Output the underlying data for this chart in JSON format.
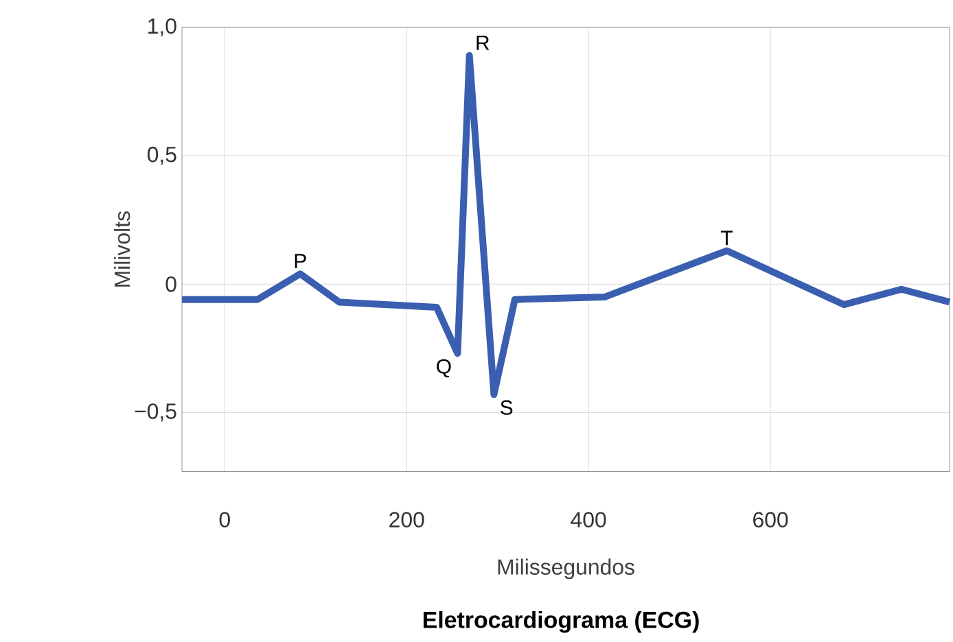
{
  "chart_data": {
    "type": "line",
    "title": "Eletrocardiograma (ECG)",
    "xlabel": "Milissegundos",
    "ylabel": "Milivolts",
    "x": [
      -47,
      36,
      83,
      126,
      233,
      256,
      269,
      296,
      319,
      418,
      552,
      681,
      744,
      797
    ],
    "values": [
      -0.06,
      -0.06,
      0.04,
      -0.07,
      -0.09,
      -0.27,
      0.89,
      -0.43,
      -0.06,
      -0.05,
      0.13,
      -0.08,
      -0.02,
      -0.07
    ],
    "color": "#3a5fb0",
    "marker": "none",
    "line_style": "solid",
    "grid": true,
    "xlim": [
      -47,
      797
    ],
    "ylim": [
      -0.73,
      1.0
    ],
    "xticks": [
      0,
      200,
      400,
      600
    ],
    "yticks": [
      {
        "value": -0.5,
        "label": "−0,5"
      },
      {
        "value": 0,
        "label": "0"
      },
      {
        "value": 0.5,
        "label": "0,5"
      },
      {
        "value": 1.0,
        "label": "1,0"
      }
    ],
    "annotations": [
      {
        "text": "P",
        "x": 83,
        "y": 0.04
      },
      {
        "text": "Q",
        "x": 256,
        "y": -0.27
      },
      {
        "text": "R",
        "x": 269,
        "y": 0.89
      },
      {
        "text": "S",
        "x": 296,
        "y": -0.43
      },
      {
        "text": "T",
        "x": 552,
        "y": 0.13
      }
    ]
  }
}
